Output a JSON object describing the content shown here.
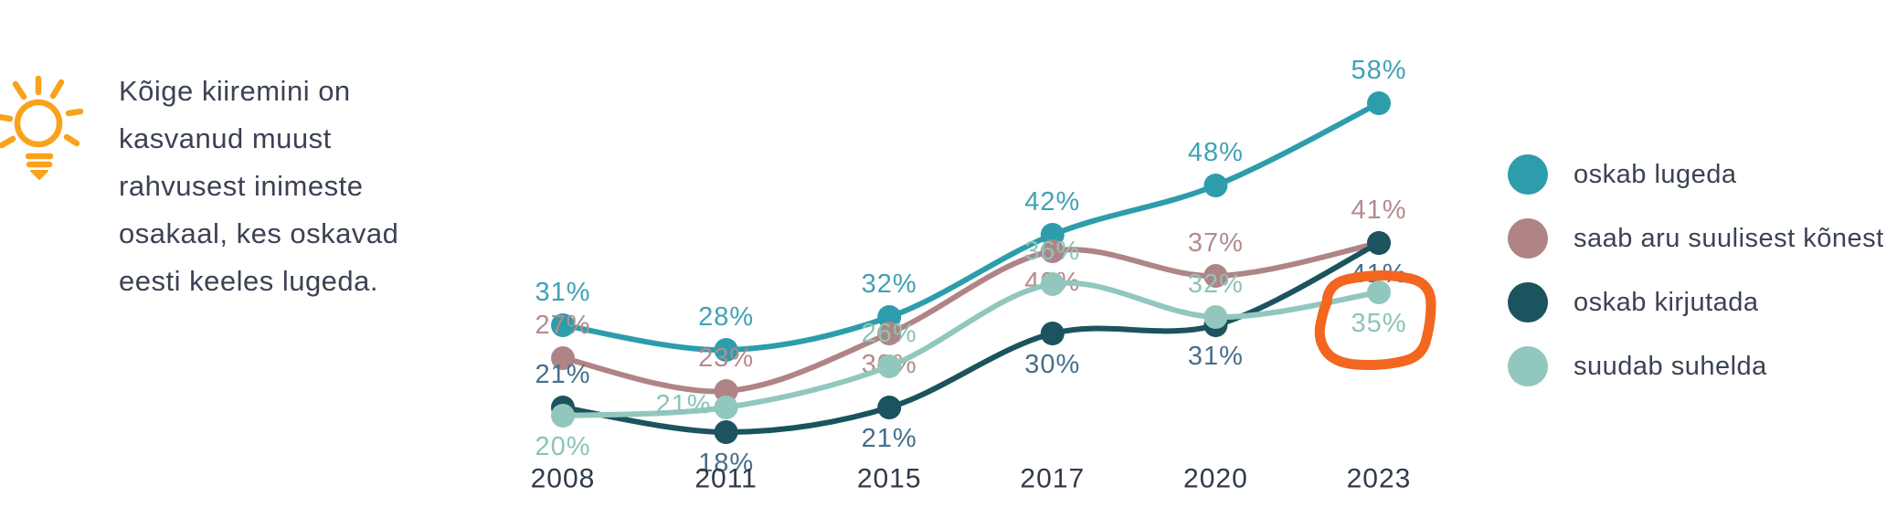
{
  "page": {
    "background": "#ffffff"
  },
  "callout": {
    "icon": "lightbulb-icon",
    "icon_color": "#F9A21C",
    "text_color": "#3C4254",
    "text_lines": [
      "Kõige kiiremini on",
      "kasvanud muust",
      "rahvusest inimeste",
      "osakaal, kes oskavad",
      "eesti keeles lugeda."
    ]
  },
  "chart_data": {
    "type": "line",
    "title": "",
    "xlabel": "",
    "ylabel": "",
    "categories": [
      "2008",
      "2011",
      "2015",
      "2017",
      "2020",
      "2023"
    ],
    "series": [
      {
        "name": "oskab lugeda",
        "color": "#2D9DAC",
        "label_color": "#3FA3B4",
        "values": [
          31,
          28,
          32,
          42,
          48,
          58
        ],
        "label_positions": [
          "above",
          "above",
          "above",
          "above",
          "above",
          "above"
        ]
      },
      {
        "name": "saab aru suulisest kõnest",
        "color": "#B08486",
        "label_color": "#B48B8D",
        "values": [
          27,
          23,
          30,
          40,
          37,
          41
        ],
        "label_positions": [
          "above",
          "above",
          "below",
          "below",
          "above",
          "above"
        ]
      },
      {
        "name": "oskab kirjutada",
        "color": "#1B535E",
        "label_color": "#476F8A",
        "values": [
          21,
          18,
          21,
          30,
          31,
          41
        ],
        "label_positions": [
          "above",
          "below",
          "below",
          "below",
          "below",
          "below"
        ]
      },
      {
        "name": "suudab suhelda",
        "color": "#92C7BD",
        "label_color": "#8CC4BA",
        "values": [
          20,
          21,
          26,
          36,
          32,
          35
        ],
        "label_positions": [
          "below",
          "left",
          "above",
          "above",
          "above",
          "below"
        ]
      }
    ],
    "value_suffix": "%",
    "ylim": [
      15,
      62
    ],
    "grid": false,
    "legend_position": "right",
    "axis_tick_color": "#303A49",
    "annotation": {
      "shape": "hand-drawn-circle",
      "color": "#F2661F",
      "series": "suudab suhelda",
      "category": "2023",
      "value_label": "35%"
    }
  }
}
